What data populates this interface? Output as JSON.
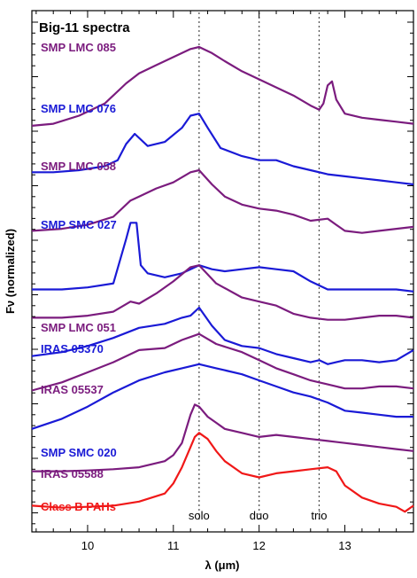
{
  "chart_data": {
    "type": "line",
    "title": "Big-11 spectra",
    "xlabel": "λ (μm)",
    "ylabel": "Fν (normalized)",
    "xlim": [
      9.35,
      13.8
    ],
    "x_ticks": [
      10,
      11,
      12,
      13
    ],
    "grid": false,
    "markers": [
      {
        "label": "solo",
        "x": 11.3
      },
      {
        "label": "duo",
        "x": 12.0
      },
      {
        "label": "trio",
        "x": 12.7
      }
    ],
    "colors": {
      "purple": "#7b1c7e",
      "blue": "#1a1ad6",
      "red": "#f01818"
    },
    "series": [
      {
        "name": "SMP LMC 085",
        "color": "#7b1c7e",
        "x": [
          9.35,
          9.6,
          9.9,
          10.2,
          10.45,
          10.6,
          10.8,
          11.0,
          11.2,
          11.3,
          11.45,
          11.6,
          11.8,
          12.0,
          12.2,
          12.4,
          12.6,
          12.7,
          12.75,
          12.8,
          12.85,
          12.9,
          13.0,
          13.2,
          13.4,
          13.6,
          13.8
        ],
        "y": [
          10.05,
          10.1,
          10.3,
          10.6,
          11.1,
          11.35,
          11.55,
          11.75,
          11.95,
          12.0,
          11.85,
          11.65,
          11.4,
          11.2,
          11.0,
          10.8,
          10.55,
          10.45,
          10.6,
          11.05,
          11.15,
          10.7,
          10.35,
          10.25,
          10.2,
          10.15,
          10.1
        ]
      },
      {
        "name": "SMP LMC 076",
        "color": "#1a1ad6",
        "x": [
          9.35,
          9.6,
          9.9,
          10.2,
          10.35,
          10.45,
          10.55,
          10.7,
          10.9,
          11.1,
          11.2,
          11.3,
          11.4,
          11.55,
          11.8,
          12.0,
          12.2,
          12.4,
          12.6,
          12.8,
          13.0,
          13.2,
          13.4,
          13.6,
          13.8
        ],
        "y": [
          8.9,
          8.9,
          8.95,
          9.05,
          9.2,
          9.6,
          9.85,
          9.55,
          9.65,
          10.0,
          10.3,
          10.35,
          10.0,
          9.5,
          9.3,
          9.2,
          9.2,
          9.05,
          8.95,
          8.85,
          8.8,
          8.75,
          8.7,
          8.65,
          8.6
        ]
      },
      {
        "name": "SMP LMC 058",
        "color": "#7b1c7e",
        "x": [
          9.35,
          9.7,
          10.0,
          10.3,
          10.5,
          10.6,
          10.8,
          11.0,
          11.2,
          11.3,
          11.45,
          11.6,
          11.8,
          12.0,
          12.2,
          12.4,
          12.6,
          12.8,
          12.9,
          13.0,
          13.2,
          13.4,
          13.6,
          13.8
        ],
        "y": [
          7.45,
          7.5,
          7.6,
          7.8,
          8.2,
          8.3,
          8.5,
          8.65,
          8.9,
          8.95,
          8.6,
          8.3,
          8.1,
          8.0,
          7.95,
          7.85,
          7.7,
          7.75,
          7.6,
          7.45,
          7.4,
          7.45,
          7.5,
          7.55
        ]
      },
      {
        "name": "SMP SMC 027",
        "color": "#1a1ad6",
        "x": [
          9.35,
          9.7,
          10.0,
          10.3,
          10.45,
          10.5,
          10.57,
          10.62,
          10.7,
          10.9,
          11.1,
          11.3,
          11.45,
          11.6,
          11.8,
          12.0,
          12.2,
          12.4,
          12.6,
          12.8,
          13.0,
          13.2,
          13.4,
          13.6,
          13.8
        ],
        "y": [
          6.0,
          6.0,
          6.05,
          6.15,
          7.25,
          7.65,
          7.65,
          6.6,
          6.4,
          6.3,
          6.4,
          6.6,
          6.5,
          6.45,
          6.5,
          6.55,
          6.5,
          6.45,
          6.2,
          6.0,
          6.0,
          6.0,
          6.0,
          6.0,
          5.95
        ]
      },
      {
        "name": "SMP LMC 051",
        "color": "#7b1c7e",
        "x": [
          9.35,
          9.7,
          10.0,
          10.3,
          10.5,
          10.6,
          10.8,
          11.0,
          11.2,
          11.3,
          11.5,
          11.8,
          12.0,
          12.2,
          12.4,
          12.6,
          12.8,
          13.0,
          13.2,
          13.4,
          13.6,
          13.8
        ],
        "y": [
          5.3,
          5.3,
          5.35,
          5.45,
          5.7,
          5.65,
          5.9,
          6.2,
          6.55,
          6.6,
          6.15,
          5.8,
          5.7,
          5.6,
          5.4,
          5.3,
          5.25,
          5.25,
          5.3,
          5.35,
          5.35,
          5.3
        ]
      },
      {
        "name": "IRAS 05370",
        "color": "#1a1ad6",
        "x": [
          9.35,
          9.7,
          10.0,
          10.3,
          10.6,
          10.9,
          11.1,
          11.2,
          11.3,
          11.45,
          11.6,
          11.8,
          12.0,
          12.2,
          12.4,
          12.6,
          12.7,
          12.8,
          13.0,
          13.2,
          13.4,
          13.6,
          13.8
        ],
        "y": [
          4.35,
          4.45,
          4.6,
          4.8,
          5.05,
          5.15,
          5.3,
          5.35,
          5.55,
          5.1,
          4.75,
          4.6,
          4.55,
          4.4,
          4.3,
          4.2,
          4.25,
          4.15,
          4.25,
          4.25,
          4.2,
          4.25,
          4.5
        ]
      },
      {
        "name": "IRAS 05537",
        "color": "#7b1c7e",
        "x": [
          9.35,
          9.7,
          10.0,
          10.3,
          10.6,
          10.9,
          11.1,
          11.3,
          11.5,
          11.8,
          12.0,
          12.2,
          12.4,
          12.6,
          12.8,
          13.0,
          13.2,
          13.4,
          13.6,
          13.8
        ],
        "y": [
          3.5,
          3.7,
          3.95,
          4.2,
          4.5,
          4.55,
          4.75,
          4.9,
          4.65,
          4.45,
          4.25,
          4.05,
          3.9,
          3.75,
          3.65,
          3.55,
          3.55,
          3.6,
          3.6,
          3.55
        ]
      },
      {
        "name": "SMP SMC 020",
        "color": "#1a1ad6",
        "x": [
          9.35,
          9.7,
          10.0,
          10.3,
          10.6,
          10.9,
          11.1,
          11.3,
          11.5,
          11.8,
          12.0,
          12.2,
          12.4,
          12.6,
          12.8,
          13.0,
          13.2,
          13.4,
          13.6,
          13.8
        ],
        "y": [
          2.55,
          2.8,
          3.1,
          3.45,
          3.75,
          3.95,
          4.05,
          4.15,
          4.05,
          3.9,
          3.75,
          3.6,
          3.45,
          3.35,
          3.2,
          3.0,
          2.95,
          2.9,
          2.85,
          2.85
        ]
      },
      {
        "name": "IRAS 05588",
        "color": "#7b1c7e",
        "x": [
          9.35,
          9.7,
          10.0,
          10.3,
          10.6,
          10.9,
          11.0,
          11.1,
          11.2,
          11.25,
          11.3,
          11.4,
          11.5,
          11.6,
          11.8,
          12.0,
          12.2,
          12.4,
          12.6,
          12.8,
          13.0,
          13.2,
          13.4,
          13.6,
          13.8
        ],
        "y": [
          1.5,
          1.5,
          1.52,
          1.55,
          1.6,
          1.75,
          1.9,
          2.2,
          2.9,
          3.15,
          3.1,
          2.85,
          2.7,
          2.55,
          2.45,
          2.35,
          2.4,
          2.35,
          2.3,
          2.25,
          2.2,
          2.15,
          2.1,
          2.05,
          2.0
        ]
      },
      {
        "name": "Class B PAHs",
        "color": "#f01818",
        "x": [
          9.35,
          9.7,
          10.0,
          10.3,
          10.6,
          10.9,
          11.0,
          11.1,
          11.2,
          11.25,
          11.3,
          11.4,
          11.5,
          11.6,
          11.8,
          12.0,
          12.2,
          12.4,
          12.6,
          12.8,
          12.9,
          13.0,
          13.2,
          13.4,
          13.6,
          13.7,
          13.8
        ],
        "y": [
          0.65,
          0.6,
          0.62,
          0.65,
          0.75,
          0.95,
          1.2,
          1.6,
          2.1,
          2.35,
          2.45,
          2.3,
          2.0,
          1.75,
          1.45,
          1.35,
          1.45,
          1.5,
          1.55,
          1.6,
          1.5,
          1.15,
          0.85,
          0.7,
          0.62,
          0.5,
          0.65
        ]
      }
    ]
  }
}
